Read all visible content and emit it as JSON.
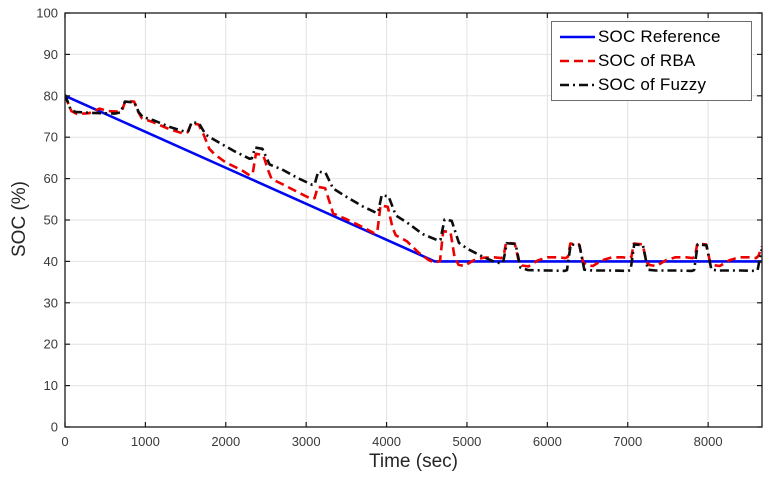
{
  "figure": {
    "background": "#ffffff"
  },
  "chart_data": {
    "type": "line",
    "title": "",
    "xlabel": "Time (sec)",
    "ylabel": "SOC (%)",
    "xlim": [
      0,
      8670
    ],
    "ylim": [
      0,
      100
    ],
    "xticks": [
      0,
      1000,
      2000,
      3000,
      4000,
      5000,
      6000,
      7000,
      8000
    ],
    "yticks": [
      0,
      10,
      20,
      30,
      40,
      50,
      60,
      70,
      80,
      90,
      100
    ],
    "grid": true,
    "legend_position": "northeast",
    "axis_color": "#1a1a1a",
    "grid_color": "#e2e2e2",
    "tick_label_color": "#3a3a3a",
    "series": [
      {
        "name": "SOC Reference",
        "color": "#0008f0",
        "style": "solid",
        "points": [
          [
            0,
            80
          ],
          [
            4600,
            40
          ],
          [
            8670,
            40
          ]
        ]
      },
      {
        "name": "SOC of RBA",
        "color": "#ee0000",
        "style": "dashed",
        "points": [
          [
            0,
            80
          ],
          [
            80,
            76.3
          ],
          [
            150,
            75.6
          ],
          [
            300,
            75.8
          ],
          [
            430,
            76.9
          ],
          [
            540,
            76.3
          ],
          [
            660,
            76.2
          ],
          [
            710,
            76.5
          ],
          [
            750,
            78.7
          ],
          [
            860,
            78.6
          ],
          [
            905,
            76.3
          ],
          [
            955,
            74.6
          ],
          [
            1100,
            73.6
          ],
          [
            1300,
            71.9
          ],
          [
            1470,
            70.9
          ],
          [
            1525,
            71.2
          ],
          [
            1570,
            73.3
          ],
          [
            1660,
            73.1
          ],
          [
            1725,
            70.6
          ],
          [
            1795,
            67.2
          ],
          [
            1860,
            65.9
          ],
          [
            2000,
            63.9
          ],
          [
            2200,
            62.0
          ],
          [
            2295,
            60.8
          ],
          [
            2335,
            61.2
          ],
          [
            2375,
            66.0
          ],
          [
            2465,
            65.7
          ],
          [
            2525,
            62.1
          ],
          [
            2570,
            59.9
          ],
          [
            2700,
            58.7
          ],
          [
            2900,
            56.7
          ],
          [
            3065,
            55.1
          ],
          [
            3105,
            55.3
          ],
          [
            3145,
            58.0
          ],
          [
            3235,
            57.7
          ],
          [
            3295,
            54.1
          ],
          [
            3335,
            51.6
          ],
          [
            3500,
            50.2
          ],
          [
            3700,
            48.3
          ],
          [
            3845,
            46.8
          ],
          [
            3885,
            47.1
          ],
          [
            3925,
            53.5
          ],
          [
            4015,
            53.2
          ],
          [
            4075,
            48.1
          ],
          [
            4115,
            46.3
          ],
          [
            4250,
            44.9
          ],
          [
            4400,
            42.1
          ],
          [
            4525,
            40.3
          ],
          [
            4605,
            39.7
          ],
          [
            4665,
            40.1
          ],
          [
            4705,
            47.3
          ],
          [
            4795,
            47.1
          ],
          [
            4845,
            41.1
          ],
          [
            4895,
            39.2
          ],
          [
            4965,
            38.9
          ],
          [
            5085,
            40.3
          ],
          [
            5205,
            40.9
          ],
          [
            5335,
            41.0
          ],
          [
            5425,
            40.8
          ],
          [
            5455,
            41.1
          ],
          [
            5485,
            44.5
          ],
          [
            5595,
            44.3
          ],
          [
            5645,
            40.0
          ],
          [
            5685,
            39.0
          ],
          [
            5765,
            38.8
          ],
          [
            5885,
            40.3
          ],
          [
            6005,
            41.0
          ],
          [
            6135,
            41.0
          ],
          [
            6225,
            40.8
          ],
          [
            6255,
            41.1
          ],
          [
            6285,
            44.3
          ],
          [
            6395,
            44.1
          ],
          [
            6445,
            39.8
          ],
          [
            6485,
            39.1
          ],
          [
            6565,
            38.9
          ],
          [
            6685,
            40.3
          ],
          [
            6805,
            41.0
          ],
          [
            6935,
            41.0
          ],
          [
            7015,
            40.8
          ],
          [
            7045,
            41.1
          ],
          [
            7075,
            44.3
          ],
          [
            7185,
            44.1
          ],
          [
            7235,
            39.8
          ],
          [
            7275,
            39.1
          ],
          [
            7355,
            38.9
          ],
          [
            7475,
            40.3
          ],
          [
            7595,
            41.0
          ],
          [
            7725,
            41.0
          ],
          [
            7805,
            40.8
          ],
          [
            7835,
            41.1
          ],
          [
            7865,
            44.3
          ],
          [
            7975,
            44.1
          ],
          [
            8025,
            39.8
          ],
          [
            8065,
            39.1
          ],
          [
            8145,
            38.9
          ],
          [
            8265,
            40.3
          ],
          [
            8385,
            41.0
          ],
          [
            8515,
            41.0
          ],
          [
            8595,
            40.8
          ],
          [
            8625,
            41.3
          ],
          [
            8670,
            43.6
          ]
        ]
      },
      {
        "name": "SOC of Fuzzy",
        "color": "#0d0d0d",
        "style": "dashdot",
        "points": [
          [
            0,
            80.3
          ],
          [
            70,
            76.7
          ],
          [
            130,
            76.1
          ],
          [
            300,
            75.9
          ],
          [
            620,
            75.7
          ],
          [
            690,
            76.0
          ],
          [
            745,
            78.6
          ],
          [
            865,
            78.4
          ],
          [
            915,
            76.1
          ],
          [
            965,
            74.9
          ],
          [
            1100,
            74.1
          ],
          [
            1300,
            72.5
          ],
          [
            1495,
            71.3
          ],
          [
            1535,
            71.5
          ],
          [
            1575,
            73.6
          ],
          [
            1665,
            73.4
          ],
          [
            1750,
            70.6
          ],
          [
            1900,
            68.9
          ],
          [
            2100,
            66.7
          ],
          [
            2295,
            64.8
          ],
          [
            2325,
            64.9
          ],
          [
            2365,
            67.5
          ],
          [
            2455,
            67.2
          ],
          [
            2545,
            63.4
          ],
          [
            2700,
            62.2
          ],
          [
            2900,
            60.1
          ],
          [
            3075,
            58.5
          ],
          [
            3105,
            58.6
          ],
          [
            3150,
            61.7
          ],
          [
            3240,
            61.4
          ],
          [
            3335,
            57.6
          ],
          [
            3500,
            55.6
          ],
          [
            3700,
            53.3
          ],
          [
            3865,
            51.8
          ],
          [
            3895,
            51.9
          ],
          [
            3940,
            56.0
          ],
          [
            4025,
            55.7
          ],
          [
            4115,
            51.1
          ],
          [
            4260,
            49.3
          ],
          [
            4450,
            46.6
          ],
          [
            4635,
            45.1
          ],
          [
            4670,
            45.2
          ],
          [
            4720,
            50.1
          ],
          [
            4810,
            49.8
          ],
          [
            4900,
            44.5
          ],
          [
            5010,
            43.0
          ],
          [
            5190,
            41.2
          ],
          [
            5340,
            39.9
          ],
          [
            5425,
            39.5
          ],
          [
            5450,
            39.7
          ],
          [
            5495,
            44.4
          ],
          [
            5605,
            44.2
          ],
          [
            5665,
            38.5
          ],
          [
            5760,
            37.9
          ],
          [
            6010,
            37.8
          ],
          [
            6215,
            37.7
          ],
          [
            6245,
            37.9
          ],
          [
            6290,
            44.1
          ],
          [
            6400,
            43.9
          ],
          [
            6460,
            38.0
          ],
          [
            6560,
            37.8
          ],
          [
            6810,
            37.8
          ],
          [
            7005,
            37.7
          ],
          [
            7035,
            37.9
          ],
          [
            7080,
            44.1
          ],
          [
            7190,
            43.9
          ],
          [
            7250,
            38.0
          ],
          [
            7345,
            37.8
          ],
          [
            7610,
            37.8
          ],
          [
            7795,
            37.7
          ],
          [
            7825,
            37.9
          ],
          [
            7870,
            44.1
          ],
          [
            7980,
            43.9
          ],
          [
            8040,
            38.0
          ],
          [
            8135,
            37.8
          ],
          [
            8405,
            37.8
          ],
          [
            8585,
            37.7
          ],
          [
            8615,
            37.9
          ],
          [
            8660,
            42.4
          ],
          [
            8670,
            42.9
          ]
        ]
      }
    ]
  }
}
